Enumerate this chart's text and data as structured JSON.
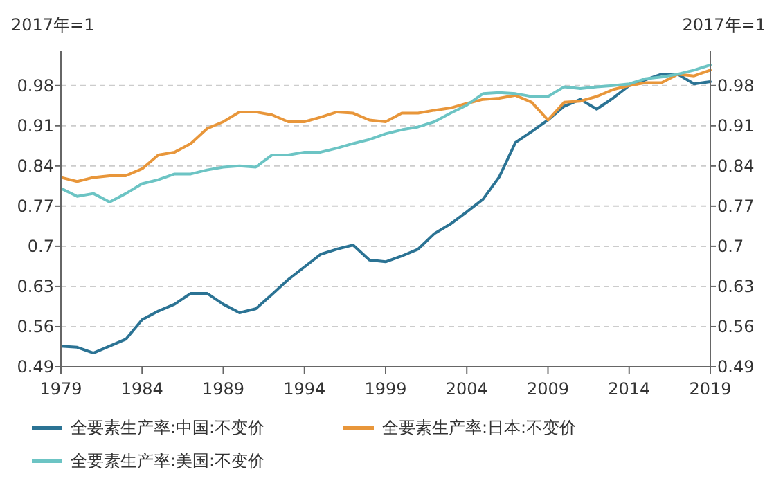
{
  "chart_data": {
    "type": "line",
    "ylabel": "2017年=1",
    "y2label": "2017年=1",
    "x": [
      1979,
      1980,
      1981,
      1982,
      1983,
      1984,
      1985,
      1986,
      1987,
      1988,
      1989,
      1990,
      1991,
      1992,
      1993,
      1994,
      1995,
      1996,
      1997,
      1998,
      1999,
      2000,
      2001,
      2002,
      2003,
      2004,
      2005,
      2006,
      2007,
      2008,
      2009,
      2010,
      2011,
      2012,
      2013,
      2014,
      2015,
      2016,
      2017,
      2018,
      2019
    ],
    "series": [
      {
        "name": "全要素生产率:中国:不变价",
        "color": "#2b7394",
        "values": [
          0.526,
          0.524,
          0.514,
          0.526,
          0.538,
          0.572,
          0.587,
          0.599,
          0.618,
          0.618,
          0.599,
          0.584,
          0.591,
          0.616,
          0.642,
          0.664,
          0.686,
          0.695,
          0.702,
          0.676,
          0.673,
          0.683,
          0.695,
          0.722,
          0.739,
          0.76,
          0.782,
          0.821,
          0.881,
          0.9,
          0.92,
          0.944,
          0.956,
          0.939,
          0.958,
          0.98,
          0.99,
          1.0,
          1.0,
          0.983,
          0.987
        ]
      },
      {
        "name": "全要素生产率:日本:不变价",
        "color": "#e8963a",
        "values": [
          0.82,
          0.813,
          0.82,
          0.823,
          0.823,
          0.835,
          0.859,
          0.864,
          0.879,
          0.905,
          0.917,
          0.934,
          0.934,
          0.929,
          0.917,
          0.917,
          0.925,
          0.934,
          0.932,
          0.92,
          0.917,
          0.932,
          0.932,
          0.937,
          0.941,
          0.949,
          0.956,
          0.958,
          0.963,
          0.951,
          0.92,
          0.951,
          0.953,
          0.961,
          0.973,
          0.98,
          0.985,
          0.985,
          1.0,
          0.997,
          1.007
        ]
      },
      {
        "name": "全要素生产率:美国:不变价",
        "color": "#6cc4c4",
        "values": [
          0.801,
          0.787,
          0.792,
          0.777,
          0.792,
          0.809,
          0.816,
          0.826,
          0.826,
          0.833,
          0.838,
          0.84,
          0.838,
          0.859,
          0.859,
          0.864,
          0.864,
          0.871,
          0.879,
          0.886,
          0.896,
          0.903,
          0.908,
          0.917,
          0.932,
          0.946,
          0.966,
          0.968,
          0.966,
          0.961,
          0.961,
          0.978,
          0.975,
          0.978,
          0.98,
          0.983,
          0.992,
          0.995,
          1.0,
          1.007,
          1.016
        ]
      }
    ],
    "xlim": [
      1979,
      2019
    ],
    "xticks": [
      1979,
      1984,
      1989,
      1994,
      1999,
      2004,
      2009,
      2014,
      2019
    ],
    "ylim": [
      0.49,
      1.04
    ],
    "yticks": [
      0.49,
      0.56,
      0.63,
      0.7,
      0.77,
      0.84,
      0.91,
      0.98
    ],
    "y2lim": [
      0.49,
      1.04
    ],
    "y2ticks": [
      0.49,
      0.56,
      0.63,
      0.7,
      0.77,
      0.84,
      0.91,
      0.98
    ],
    "grid": "y",
    "legend": "bottom",
    "marker": "none",
    "line_style": "solid"
  }
}
